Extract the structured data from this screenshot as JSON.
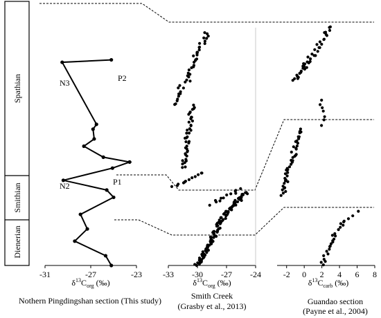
{
  "chart_data": [
    {
      "type": "line",
      "title": "Nothern Pingdingshan section (This study)",
      "xlabel_main": "δ",
      "xlabel_sup": "13",
      "xlabel_mid": "C",
      "xlabel_sub": "org",
      "xlabel_unit": " (‰)",
      "xlim": [
        -31,
        -23
      ],
      "xticks": [
        "-31",
        "-27",
        "-23"
      ],
      "annotations": [
        "P2",
        "N3",
        "P1",
        "N2"
      ],
      "points": [
        {
          "x": -25.2,
          "y": 0.0
        },
        {
          "x": -25.7,
          "y": 0.04
        },
        {
          "x": -28.4,
          "y": 0.1
        },
        {
          "x": -27.3,
          "y": 0.15
        },
        {
          "x": -27.9,
          "y": 0.21
        },
        {
          "x": -25.0,
          "y": 0.28
        },
        {
          "x": -25.6,
          "y": 0.31
        },
        {
          "x": -29.4,
          "y": 0.35
        },
        {
          "x": -25.1,
          "y": 0.4
        },
        {
          "x": -23.6,
          "y": 0.425
        },
        {
          "x": -25.9,
          "y": 0.445
        },
        {
          "x": -27.6,
          "y": 0.49
        },
        {
          "x": -26.7,
          "y": 0.52
        },
        {
          "x": -26.8,
          "y": 0.56
        },
        {
          "x": -26.5,
          "y": 0.58
        },
        {
          "x": -29.5,
          "y": 0.835
        },
        {
          "x": -25.2,
          "y": 0.845
        }
      ]
    },
    {
      "type": "scatter",
      "title": "Smith Creek",
      "subtitle": "(Grasby et al., 2013)",
      "xlabel_main": "δ",
      "xlabel_sup": "13",
      "xlabel_mid": "C",
      "xlabel_sub": "org",
      "xlabel_unit": " (‰)",
      "xlim": [
        -33,
        -24
      ],
      "xticks": [
        "-33",
        "-30",
        "-27",
        "-24"
      ],
      "segments": [
        {
          "x0": -30.0,
          "x1": -27.0,
          "y0": 0.0,
          "y1": 0.22,
          "n": 80
        },
        {
          "x0": -27.0,
          "x1": -25.0,
          "y0": 0.22,
          "y1": 0.3,
          "n": 35
        },
        {
          "x0": -28.5,
          "x1": -25.5,
          "y0": 0.25,
          "y1": 0.32,
          "n": 12
        },
        {
          "x0": -32.5,
          "x1": -29.5,
          "y0": 0.32,
          "y1": 0.38,
          "n": 12
        },
        {
          "x0": -31.5,
          "x1": -30.5,
          "y0": 0.4,
          "y1": 0.66,
          "n": 40
        },
        {
          "x0": -32.5,
          "x1": -31.5,
          "y0": 0.66,
          "y1": 0.75,
          "n": 12
        },
        {
          "x0": -31.0,
          "x1": -30.0,
          "y0": 0.76,
          "y1": 0.88,
          "n": 18
        },
        {
          "x0": -29.8,
          "x1": -29.0,
          "y0": 0.88,
          "y1": 0.96,
          "n": 12
        }
      ]
    },
    {
      "type": "scatter",
      "title": "Guandao section",
      "subtitle": "(Payne et al., 2004)",
      "xlabel_main": "δ",
      "xlabel_sup": "13",
      "xlabel_mid": "C",
      "xlabel_sub": "carb",
      "xlabel_unit": " (‰)",
      "xlim": [
        -3,
        8
      ],
      "xticks": [
        "-2",
        "0",
        "2",
        "4",
        "6",
        "8"
      ],
      "segments": [
        {
          "x0": 2.0,
          "x1": 3.0,
          "y0": 0.0,
          "y1": 0.1,
          "n": 12
        },
        {
          "x0": 3.0,
          "x1": 4.5,
          "y0": 0.1,
          "y1": 0.18,
          "n": 10
        },
        {
          "x0": 4.5,
          "x1": 6.0,
          "y0": 0.18,
          "y1": 0.22,
          "n": 4
        },
        {
          "x0": -2.5,
          "x1": -0.5,
          "y0": 0.29,
          "y1": 0.56,
          "n": 42
        },
        {
          "x0": 2.0,
          "x1": 2.0,
          "y0": 0.58,
          "y1": 0.68,
          "n": 7
        },
        {
          "x0": -1.0,
          "x1": 0.5,
          "y0": 0.76,
          "y1": 0.84,
          "n": 18
        },
        {
          "x0": 0.5,
          "x1": 3.0,
          "y0": 0.84,
          "y1": 0.98,
          "n": 22
        }
      ]
    }
  ],
  "stages": [
    "Dienerian",
    "Smithian",
    "Spathian"
  ]
}
